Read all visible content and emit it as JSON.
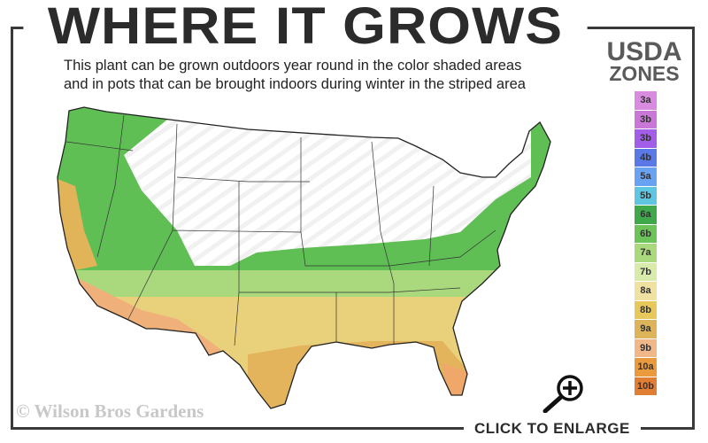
{
  "header": {
    "title": "WHERE IT GROWS",
    "subtitle_line1": "This plant can be grown outdoors year round in the color shaded areas",
    "subtitle_line2": "and in pots that can be brought indoors during winter in the striped area"
  },
  "legend": {
    "title_line1": "USDA",
    "title_line2": "ZONES",
    "zones": [
      {
        "label": "3a",
        "color": "#d98be0"
      },
      {
        "label": "3b",
        "color": "#c978d8"
      },
      {
        "label": "3b",
        "color": "#a25ee8"
      },
      {
        "label": "4b",
        "color": "#5a78e6"
      },
      {
        "label": "5a",
        "color": "#6aa2f2"
      },
      {
        "label": "5b",
        "color": "#5ec6e0"
      },
      {
        "label": "6a",
        "color": "#3fa84a"
      },
      {
        "label": "6b",
        "color": "#6cc35a"
      },
      {
        "label": "7a",
        "color": "#a9d97c"
      },
      {
        "label": "7b",
        "color": "#d9ebaa"
      },
      {
        "label": "8a",
        "color": "#efe2a0"
      },
      {
        "label": "8b",
        "color": "#e8c85a"
      },
      {
        "label": "9a",
        "color": "#ddb45a"
      },
      {
        "label": "9b",
        "color": "#f0b888"
      },
      {
        "label": "10a",
        "color": "#e89a3c"
      },
      {
        "label": "10b",
        "color": "#e07f34"
      }
    ]
  },
  "footer": {
    "copyright": "© Wilson Bros Gardens",
    "enlarge_label": "CLICK TO ENLARGE",
    "enlarge_icon": "zoom-in-magnifier-icon"
  }
}
